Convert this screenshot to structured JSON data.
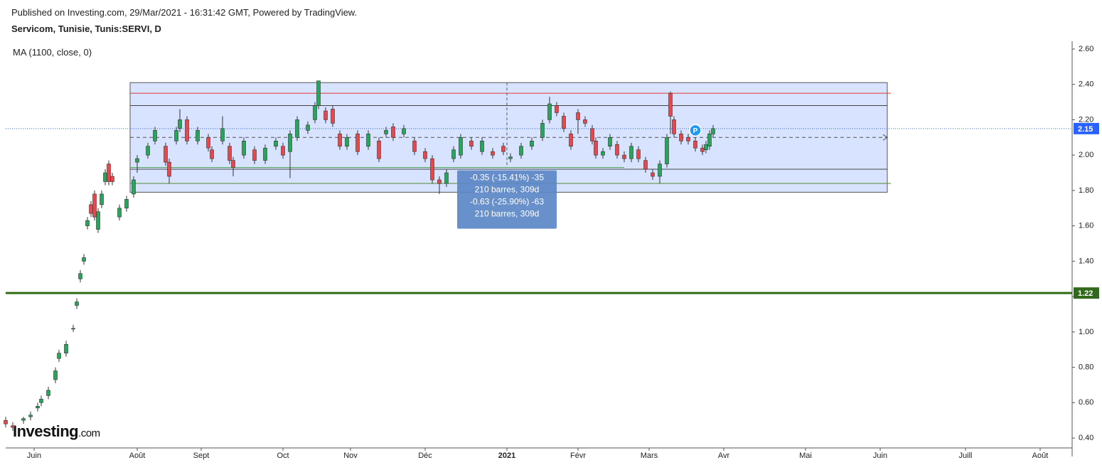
{
  "header": {
    "published": "Published on Investing.com, 29/Mar/2021 - 16:31:42 GMT, Powered by TradingView.",
    "symbol": "Servicom, Tunisie, Tunis:SERVI, D",
    "indicator": "MA (1100, close, 0)",
    "logo": "Investing",
    "logo_suffix": ".com"
  },
  "chart_data": {
    "type": "candlestick",
    "up_color": "#26a65b",
    "down_color": "#e8474d",
    "xlim": [
      0,
      300
    ],
    "ylim": [
      0.344,
      2.644
    ],
    "xticks": [
      {
        "value": 8,
        "label": "Juin"
      },
      {
        "value": 37,
        "label": "Août"
      },
      {
        "value": 55,
        "label": "Sept"
      },
      {
        "value": 78,
        "label": "Oct"
      },
      {
        "value": 97,
        "label": "Nov"
      },
      {
        "value": 118,
        "label": "Déc"
      },
      {
        "value": 141,
        "label": "2021"
      },
      {
        "value": 161,
        "label": "Févr"
      },
      {
        "value": 181,
        "label": "Mars"
      },
      {
        "value": 202,
        "label": "Avr"
      },
      {
        "value": 225,
        "label": "Mai"
      },
      {
        "value": 246,
        "label": "Juin"
      },
      {
        "value": 270,
        "label": "Juill"
      },
      {
        "value": 291,
        "label": "Août"
      }
    ],
    "yticks": [
      {
        "value": 0.4,
        "label": "0.40"
      },
      {
        "value": 0.6,
        "label": "0.60"
      },
      {
        "value": 0.8,
        "label": "0.80"
      },
      {
        "value": 1.0,
        "label": "1.00"
      },
      {
        "value": 1.2,
        "label": "1.20"
      },
      {
        "value": 1.4,
        "label": "1.40"
      },
      {
        "value": 1.6,
        "label": "1.60"
      },
      {
        "value": 1.8,
        "label": "1.80"
      },
      {
        "value": 2.0,
        "label": "2.00"
      },
      {
        "value": 2.2,
        "label": "2.20"
      },
      {
        "value": 2.4,
        "label": "2.40"
      },
      {
        "value": 2.6,
        "label": "2.60"
      }
    ],
    "candles": {
      "x": [
        0,
        2,
        5,
        7,
        9,
        10,
        12,
        14,
        15,
        17,
        19,
        20,
        21,
        22,
        23,
        24,
        25,
        26,
        27,
        28,
        29,
        30,
        32,
        34,
        36,
        37,
        40,
        42,
        45,
        46,
        48,
        49,
        51,
        54,
        57,
        58,
        61,
        63,
        64,
        67,
        70,
        73,
        76,
        78,
        80,
        82,
        85,
        87,
        88,
        90,
        92,
        94,
        96,
        99,
        102,
        105,
        107,
        109,
        112,
        115,
        118,
        120,
        122,
        124,
        126,
        128,
        131,
        134,
        137,
        140,
        142,
        145,
        148,
        151,
        153,
        155,
        157,
        159,
        161,
        163,
        165,
        166,
        168,
        170,
        172,
        174,
        176,
        178,
        180,
        182,
        184,
        186,
        187,
        188,
        190,
        192,
        194,
        196,
        197,
        198,
        199
      ],
      "open": [
        0.5,
        0.47,
        0.5,
        0.52,
        0.57,
        0.6,
        0.64,
        0.73,
        0.85,
        0.88,
        1.02,
        1.15,
        1.3,
        1.4,
        1.6,
        1.72,
        1.78,
        1.58,
        1.72,
        1.85,
        1.95,
        1.88,
        1.65,
        1.7,
        1.78,
        1.96,
        2.0,
        2.08,
        2.05,
        1.96,
        2.08,
        2.15,
        2.2,
        2.08,
        2.1,
        2.03,
        2.08,
        2.05,
        1.97,
        2.0,
        2.03,
        1.97,
        2.05,
        2.05,
        2.02,
        2.1,
        2.14,
        2.2,
        2.28,
        2.25,
        2.26,
        2.12,
        2.05,
        2.12,
        2.05,
        2.08,
        2.12,
        2.16,
        2.12,
        2.08,
        2.02,
        1.98,
        1.86,
        1.84,
        1.98,
        2.0,
        2.08,
        2.02,
        2.02,
        2.05,
        1.98,
        2.0,
        2.05,
        2.1,
        2.2,
        2.28,
        2.22,
        2.12,
        2.24,
        2.2,
        2.15,
        2.08,
        2.0,
        2.05,
        2.06,
        2.0,
        1.98,
        2.03,
        1.97,
        1.9,
        1.88,
        1.95,
        2.35,
        2.2,
        2.12,
        2.1,
        2.08,
        2.04,
        2.03,
        2.05,
        2.12
      ],
      "high": [
        0.52,
        0.49,
        0.52,
        0.55,
        0.6,
        0.64,
        0.69,
        0.8,
        0.9,
        0.95,
        1.04,
        1.19,
        1.35,
        1.44,
        1.65,
        1.74,
        1.8,
        1.7,
        1.8,
        1.92,
        1.97,
        1.9,
        1.72,
        1.77,
        1.88,
        2.0,
        2.07,
        2.16,
        2.07,
        1.98,
        2.16,
        2.26,
        2.22,
        2.16,
        2.12,
        2.05,
        2.22,
        2.07,
        1.99,
        2.1,
        2.05,
        2.06,
        2.1,
        2.07,
        2.14,
        2.22,
        2.19,
        2.3,
        2.42,
        2.27,
        2.28,
        2.14,
        2.12,
        2.14,
        2.14,
        2.1,
        2.16,
        2.18,
        2.17,
        2.1,
        2.04,
        2.0,
        1.88,
        1.92,
        2.05,
        2.12,
        2.1,
        2.1,
        2.04,
        2.07,
        2.01,
        2.07,
        2.1,
        2.2,
        2.33,
        2.3,
        2.24,
        2.14,
        2.26,
        2.22,
        2.17,
        2.1,
        2.04,
        2.12,
        2.08,
        2.02,
        2.07,
        2.05,
        1.99,
        1.92,
        1.97,
        2.12,
        2.36,
        2.22,
        2.14,
        2.12,
        2.1,
        2.06,
        2.08,
        2.14,
        2.17
      ],
      "low": [
        0.46,
        0.44,
        0.48,
        0.5,
        0.55,
        0.58,
        0.62,
        0.71,
        0.83,
        0.86,
        1.0,
        1.13,
        1.28,
        1.38,
        1.58,
        1.65,
        1.63,
        1.56,
        1.7,
        1.83,
        1.83,
        1.83,
        1.63,
        1.68,
        1.76,
        1.9,
        1.98,
        2.06,
        1.94,
        1.84,
        2.06,
        2.13,
        2.06,
        2.06,
        2.02,
        1.96,
        2.06,
        1.95,
        1.88,
        1.98,
        1.95,
        1.95,
        2.03,
        1.98,
        1.87,
        2.08,
        2.12,
        2.18,
        2.26,
        2.18,
        2.16,
        2.03,
        2.03,
        2.0,
        2.03,
        1.96,
        2.1,
        2.08,
        2.1,
        2.0,
        1.96,
        1.84,
        1.78,
        1.82,
        1.96,
        1.98,
        2.03,
        2.0,
        1.98,
        2.0,
        1.96,
        1.98,
        2.03,
        2.08,
        2.18,
        2.22,
        2.13,
        2.03,
        2.12,
        2.16,
        2.06,
        1.98,
        1.98,
        2.03,
        1.98,
        1.96,
        1.96,
        1.96,
        1.9,
        1.86,
        1.84,
        1.93,
        2.12,
        2.1,
        2.06,
        2.06,
        2.02,
        2.0,
        2.01,
        2.03,
        2.1
      ],
      "close": [
        0.48,
        0.46,
        0.51,
        0.53,
        0.58,
        0.62,
        0.67,
        0.78,
        0.88,
        0.93,
        1.02,
        1.17,
        1.33,
        1.42,
        1.63,
        1.67,
        1.65,
        1.68,
        1.78,
        1.9,
        1.85,
        1.85,
        1.7,
        1.75,
        1.86,
        1.98,
        2.05,
        2.14,
        1.96,
        1.88,
        2.14,
        2.2,
        2.08,
        2.14,
        2.04,
        1.98,
        2.15,
        1.97,
        1.93,
        2.08,
        1.97,
        2.04,
        2.08,
        2.0,
        2.12,
        2.2,
        2.17,
        2.28,
        2.42,
        2.2,
        2.18,
        2.05,
        2.1,
        2.02,
        2.12,
        1.98,
        2.14,
        2.1,
        2.15,
        2.02,
        1.98,
        1.86,
        1.84,
        1.9,
        2.03,
        2.1,
        2.05,
        2.08,
        2.0,
        2.02,
        1.99,
        2.05,
        2.08,
        2.18,
        2.29,
        2.24,
        2.15,
        2.05,
        2.2,
        2.18,
        2.08,
        2.0,
        2.02,
        2.1,
        2.0,
        1.98,
        2.05,
        1.98,
        1.92,
        1.88,
        1.95,
        2.1,
        2.22,
        2.12,
        2.08,
        2.08,
        2.04,
        2.02,
        2.06,
        2.12,
        2.15
      ]
    },
    "range_box": {
      "x": [
        35,
        248
      ],
      "y": [
        1.79,
        2.41
      ],
      "color": "#2962ff"
    },
    "hlines": [
      {
        "value": 2.35,
        "x": [
          35,
          249
        ],
        "color": "#e53935",
        "style": "solid",
        "width": 1
      },
      {
        "value": 2.28,
        "x": [
          35,
          248
        ],
        "color": "#444444",
        "style": "solid",
        "width": 1
      },
      {
        "value": 2.1,
        "x": [
          35,
          248
        ],
        "color": "#555555",
        "style": "dashed",
        "width": 1
      },
      {
        "value": 1.93,
        "x": [
          35,
          174
        ],
        "color": "#43a047",
        "style": "solid",
        "width": 1
      },
      {
        "value": 1.92,
        "x": [
          35,
          248
        ],
        "color": "#444444",
        "style": "solid",
        "width": 1
      },
      {
        "value": 1.84,
        "x": [
          35,
          249
        ],
        "color": "#558b2f",
        "style": "solid",
        "width": 1
      },
      {
        "value": 1.22,
        "x": [
          0,
          300
        ],
        "color": "#2e6b12",
        "style": "solid",
        "width": 3
      },
      {
        "value": 2.15,
        "x": [
          0,
          300
        ],
        "color": "#2962ff",
        "style": "dotted",
        "width": 1
      }
    ],
    "price_labels": [
      {
        "value": 2.15,
        "color": "#2962ff"
      },
      {
        "value": 1.22,
        "color": "#33691e"
      }
    ],
    "marker": {
      "text": "P",
      "x": 194,
      "y": 2.14,
      "color": "#2196f3"
    },
    "measure": {
      "x": 141,
      "y": [
        2.41,
        1.93
      ],
      "lines": [
        "-0.35 (-15.41%) -35",
        "210 barres, 309d",
        "-0.63 (-25.90%) -63",
        "210 barres, 309d"
      ]
    }
  }
}
